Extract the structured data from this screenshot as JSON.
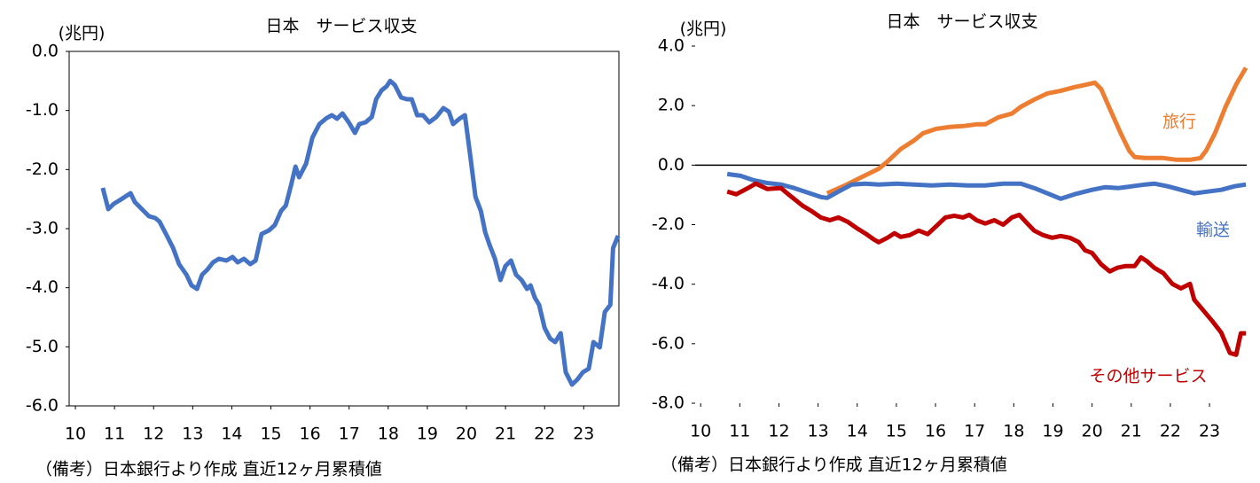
{
  "chart_data": [
    {
      "type": "line",
      "title": "日本　サービス収支",
      "y_unit": "(兆円)",
      "note": "（備考）日本銀行より作成 直近12ヶ月累積値",
      "color": "#4472c4",
      "x": [
        10.7,
        10.84,
        10.98,
        11.13,
        11.41,
        11.52,
        11.7,
        11.88,
        12.04,
        12.15,
        12.34,
        12.5,
        12.65,
        12.84,
        12.97,
        13.11,
        13.24,
        13.38,
        13.52,
        13.67,
        13.86,
        14.02,
        14.15,
        14.31,
        14.47,
        14.61,
        14.76,
        14.95,
        15.1,
        15.26,
        15.38,
        15.51,
        15.63,
        15.72,
        15.9,
        16.06,
        16.24,
        16.42,
        16.56,
        16.69,
        16.83,
        16.99,
        17.15,
        17.26,
        17.42,
        17.58,
        17.69,
        17.83,
        17.96,
        18.05,
        18.17,
        18.33,
        18.48,
        18.6,
        18.74,
        18.89,
        19.05,
        19.23,
        19.41,
        19.55,
        19.66,
        19.82,
        19.96,
        20.1,
        20.23,
        20.37,
        20.48,
        20.59,
        20.73,
        20.87,
        21.0,
        21.14,
        21.27,
        21.41,
        21.55,
        21.64,
        21.75,
        21.86,
        22.0,
        22.14,
        22.27,
        22.41,
        22.54,
        22.7,
        22.84,
        22.98,
        23.13,
        23.25,
        23.41,
        23.54,
        23.68,
        23.75,
        23.88
      ],
      "values": [
        -2.31,
        -2.67,
        -2.58,
        -2.52,
        -2.4,
        -2.55,
        -2.67,
        -2.79,
        -2.82,
        -2.88,
        -3.12,
        -3.33,
        -3.6,
        -3.78,
        -3.96,
        -4.02,
        -3.78,
        -3.69,
        -3.57,
        -3.51,
        -3.54,
        -3.48,
        -3.57,
        -3.51,
        -3.6,
        -3.54,
        -3.09,
        -3.03,
        -2.94,
        -2.7,
        -2.61,
        -2.28,
        -1.95,
        -2.13,
        -1.9,
        -1.46,
        -1.23,
        -1.13,
        -1.08,
        -1.14,
        -1.05,
        -1.2,
        -1.38,
        -1.23,
        -1.2,
        -1.11,
        -0.81,
        -0.66,
        -0.59,
        -0.5,
        -0.57,
        -0.78,
        -0.81,
        -0.81,
        -1.08,
        -1.08,
        -1.2,
        -1.11,
        -0.96,
        -1.02,
        -1.23,
        -1.14,
        -1.08,
        -1.77,
        -2.46,
        -2.7,
        -3.06,
        -3.27,
        -3.51,
        -3.87,
        -3.63,
        -3.54,
        -3.78,
        -3.87,
        -4.02,
        -3.96,
        -4.17,
        -4.29,
        -4.68,
        -4.86,
        -4.92,
        -4.77,
        -5.43,
        -5.64,
        -5.55,
        -5.43,
        -5.37,
        -4.92,
        -5.01,
        -4.41,
        -4.29,
        -3.33,
        -3.12
      ],
      "xlim": [
        9.84,
        23.9
      ],
      "xticks": [
        10,
        11,
        12,
        13,
        14,
        15,
        16,
        17,
        18,
        19,
        20,
        21,
        22,
        23
      ],
      "ylim": [
        -6,
        0
      ],
      "yticks": [
        {
          "value": 0,
          "label": "0.0"
        },
        {
          "value": -1,
          "label": "-1.0"
        },
        {
          "value": -2,
          "label": "-2.0"
        },
        {
          "value": -3,
          "label": "-3.0"
        },
        {
          "value": -4,
          "label": "-4.0"
        },
        {
          "value": -5,
          "label": "-5.0"
        },
        {
          "value": -6,
          "label": "-6.0"
        }
      ]
    },
    {
      "type": "line",
      "title": "日本　サービス収支",
      "y_unit": "(兆円)",
      "note": "（備考）日本銀行より作成 直近12ヶ月累積値",
      "zero_line": true,
      "series": [
        {
          "name": "旅行",
          "color": "#ed7d31",
          "x": [
            13.23,
            13.64,
            14.09,
            14.55,
            14.77,
            15.11,
            15.45,
            15.68,
            16.02,
            16.36,
            16.7,
            17.05,
            17.27,
            17.61,
            17.95,
            18.18,
            18.52,
            18.86,
            19.2,
            19.55,
            19.77,
            20.07,
            20.23,
            20.45,
            20.73,
            20.95,
            21.09,
            21.36,
            21.82,
            22.16,
            22.5,
            22.77,
            22.91,
            23.14,
            23.41,
            23.68,
            23.93
          ],
          "values": [
            -0.95,
            -0.71,
            -0.42,
            -0.12,
            0.12,
            0.54,
            0.83,
            1.07,
            1.22,
            1.28,
            1.31,
            1.37,
            1.37,
            1.61,
            1.73,
            1.96,
            2.2,
            2.41,
            2.5,
            2.62,
            2.68,
            2.77,
            2.56,
            1.9,
            1.07,
            0.48,
            0.27,
            0.24,
            0.24,
            0.18,
            0.18,
            0.24,
            0.48,
            1.07,
            1.96,
            2.71,
            3.27
          ]
        },
        {
          "name": "輸送",
          "color": "#4472c4",
          "x": [
            10.68,
            11.02,
            11.36,
            11.7,
            12.05,
            12.39,
            12.73,
            13.07,
            13.23,
            13.52,
            13.86,
            14.2,
            14.55,
            15.0,
            15.45,
            15.91,
            16.36,
            16.82,
            17.27,
            17.73,
            18.18,
            18.52,
            18.86,
            19.2,
            19.55,
            20.0,
            20.34,
            20.68,
            21.02,
            21.36,
            21.59,
            21.93,
            22.27,
            22.61,
            22.95,
            23.3,
            23.64,
            23.93
          ],
          "values": [
            -0.3,
            -0.36,
            -0.51,
            -0.6,
            -0.65,
            -0.77,
            -0.92,
            -1.07,
            -1.1,
            -0.89,
            -0.65,
            -0.62,
            -0.65,
            -0.62,
            -0.65,
            -0.68,
            -0.65,
            -0.68,
            -0.68,
            -0.62,
            -0.62,
            -0.77,
            -0.95,
            -1.13,
            -0.98,
            -0.83,
            -0.74,
            -0.77,
            -0.71,
            -0.65,
            -0.62,
            -0.71,
            -0.83,
            -0.95,
            -0.89,
            -0.83,
            -0.71,
            -0.65
          ]
        },
        {
          "name": "その他サービス",
          "color": "#c00000",
          "x": [
            10.68,
            10.91,
            11.25,
            11.41,
            11.7,
            12.05,
            12.27,
            12.61,
            12.84,
            13.07,
            13.3,
            13.52,
            13.75,
            13.98,
            14.2,
            14.43,
            14.55,
            14.77,
            14.95,
            15.11,
            15.34,
            15.57,
            15.8,
            16.02,
            16.25,
            16.48,
            16.7,
            16.86,
            17.05,
            17.27,
            17.5,
            17.73,
            17.95,
            18.14,
            18.3,
            18.52,
            18.75,
            18.98,
            19.2,
            19.43,
            19.66,
            19.82,
            20.0,
            20.23,
            20.45,
            20.64,
            20.86,
            21.09,
            21.25,
            21.41,
            21.59,
            21.82,
            22.05,
            22.27,
            22.5,
            22.61,
            22.84,
            23.07,
            23.3,
            23.52,
            23.68,
            23.8,
            23.93
          ],
          "values": [
            -0.89,
            -0.98,
            -0.74,
            -0.62,
            -0.8,
            -0.77,
            -1.01,
            -1.37,
            -1.55,
            -1.76,
            -1.85,
            -1.76,
            -1.9,
            -2.11,
            -2.29,
            -2.5,
            -2.59,
            -2.44,
            -2.29,
            -2.41,
            -2.35,
            -2.2,
            -2.32,
            -2.05,
            -1.76,
            -1.7,
            -1.76,
            -1.67,
            -1.85,
            -1.96,
            -1.85,
            -2.0,
            -1.76,
            -1.67,
            -1.9,
            -2.2,
            -2.35,
            -2.44,
            -2.38,
            -2.44,
            -2.59,
            -2.86,
            -2.95,
            -3.33,
            -3.57,
            -3.45,
            -3.39,
            -3.39,
            -3.1,
            -3.24,
            -3.45,
            -3.63,
            -3.99,
            -4.14,
            -3.99,
            -4.52,
            -4.88,
            -5.24,
            -5.63,
            -6.31,
            -6.37,
            -5.65,
            -5.65
          ]
        }
      ],
      "xlim": [
        9.86,
        23.95
      ],
      "xticks": [
        10,
        11,
        12,
        13,
        14,
        15,
        16,
        17,
        18,
        19,
        20,
        21,
        22,
        23
      ],
      "ylim": [
        -8,
        4
      ],
      "yticks": [
        {
          "value": 4,
          "label": "4.0"
        },
        {
          "value": 2,
          "label": "2.0"
        },
        {
          "value": 0,
          "label": "0.0"
        },
        {
          "value": -2,
          "label": "-2.0"
        },
        {
          "value": -4,
          "label": "-4.0"
        },
        {
          "value": -6,
          "label": "-6.0"
        },
        {
          "value": -8,
          "label": "-8.0"
        }
      ]
    }
  ]
}
